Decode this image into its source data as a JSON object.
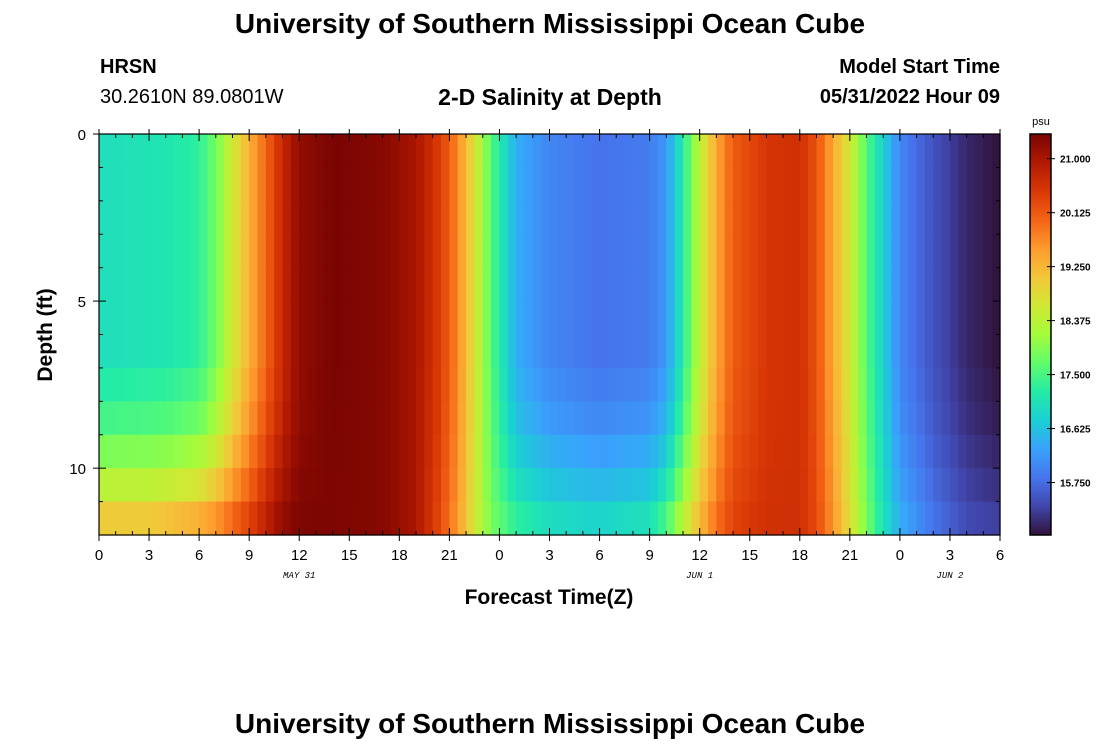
{
  "header": {
    "title": "University of Southern Mississippi Ocean Cube",
    "station_name": "HRSN",
    "station_coords": "30.2610N  89.0801W",
    "chart_title": "2-D Salinity at Depth",
    "model_label": "Model Start Time",
    "model_start": "05/31/2022 Hour 09"
  },
  "footer": {
    "title": "University of Southern Mississippi Ocean Cube"
  },
  "chart_data": {
    "type": "heatmap",
    "title": "2-D Salinity at Depth",
    "xlabel": "Forecast Time(Z)",
    "ylabel": "Depth (ft)",
    "colorbar_unit": "psu",
    "x_start_hour": 0,
    "x_end_hour": 54,
    "xlim": [
      0,
      54
    ],
    "ylim": [
      0,
      12
    ],
    "x_tick_hours": [
      0,
      3,
      6,
      9,
      12,
      15,
      18,
      21,
      24,
      27,
      30,
      33,
      36,
      39,
      42,
      45,
      48,
      51,
      54
    ],
    "x_tick_labels": [
      "0",
      "3",
      "6",
      "9",
      "12",
      "15",
      "18",
      "21",
      "0",
      "3",
      "6",
      "9",
      "12",
      "15",
      "18",
      "21",
      "0",
      "3",
      "6"
    ],
    "y_ticks": [
      0,
      5,
      10
    ],
    "y_tick_labels": [
      "0",
      "5",
      "10"
    ],
    "date_labels": [
      {
        "text": "MAY 31",
        "hour": 12
      },
      {
        "text": "JUN 1",
        "hour": 36
      },
      {
        "text": "JUN 2",
        "hour": 51
      }
    ],
    "colorbar": {
      "min": 14.9,
      "max": 21.4,
      "ticks": [
        15.75,
        16.625,
        17.5,
        18.375,
        19.25,
        20.125,
        21.0
      ],
      "tick_labels": [
        "15.750",
        "16.625",
        "17.500",
        "18.375",
        "19.250",
        "20.125",
        "21.000"
      ]
    },
    "surface_salinity_by_hour": [
      [
        0,
        17.0
      ],
      [
        4,
        17.1
      ],
      [
        6,
        17.3
      ],
      [
        7,
        17.8
      ],
      [
        8,
        18.6
      ],
      [
        9,
        19.3
      ],
      [
        10,
        20.0
      ],
      [
        11,
        20.7
      ],
      [
        12,
        21.2
      ],
      [
        14,
        21.4
      ],
      [
        17,
        21.3
      ],
      [
        19,
        21.0
      ],
      [
        20.5,
        20.4
      ],
      [
        21.5,
        19.7
      ],
      [
        22.5,
        18.7
      ],
      [
        23.5,
        17.6
      ],
      [
        25,
        16.4
      ],
      [
        27,
        16.0
      ],
      [
        30,
        15.8
      ],
      [
        33,
        15.9
      ],
      [
        34,
        16.2
      ],
      [
        35,
        17.2
      ],
      [
        36,
        18.4
      ],
      [
        37,
        19.4
      ],
      [
        38,
        20.1
      ],
      [
        40,
        20.5
      ],
      [
        42,
        20.6
      ],
      [
        43,
        20.2
      ],
      [
        44,
        19.4
      ],
      [
        45,
        18.6
      ],
      [
        46,
        17.6
      ],
      [
        47,
        16.8
      ],
      [
        48,
        16.0
      ],
      [
        50,
        15.5
      ],
      [
        52,
        15.1
      ],
      [
        54,
        14.9
      ]
    ],
    "bottom_salinity_by_hour": [
      [
        0,
        19.5
      ],
      [
        3,
        19.5
      ],
      [
        6,
        19.8
      ],
      [
        7,
        20.0
      ],
      [
        8,
        20.3
      ],
      [
        9,
        20.6
      ],
      [
        10,
        21.0
      ],
      [
        11,
        21.3
      ],
      [
        12,
        21.4
      ],
      [
        17,
        21.3
      ],
      [
        19,
        21.0
      ],
      [
        20.5,
        20.2
      ],
      [
        21.5,
        19.5
      ],
      [
        22.5,
        18.6
      ],
      [
        23.5,
        17.9
      ],
      [
        25,
        17.5
      ],
      [
        27,
        17.2
      ],
      [
        30,
        17.1
      ],
      [
        33,
        17.3
      ],
      [
        34,
        17.8
      ],
      [
        35,
        18.6
      ],
      [
        36,
        19.4
      ],
      [
        37,
        20.0
      ],
      [
        38,
        20.4
      ],
      [
        40,
        20.6
      ],
      [
        42,
        20.6
      ],
      [
        43,
        20.3
      ],
      [
        44,
        19.6
      ],
      [
        45,
        18.8
      ],
      [
        46,
        17.9
      ],
      [
        47,
        17.1
      ],
      [
        48,
        16.5
      ],
      [
        50,
        15.9
      ],
      [
        52,
        15.5
      ],
      [
        54,
        15.4
      ]
    ],
    "depth_profile": [
      [
        0,
        0.0
      ],
      [
        7,
        0.0
      ],
      [
        7.5,
        0.08
      ],
      [
        8.5,
        0.18
      ],
      [
        9.5,
        0.35
      ],
      [
        10.5,
        0.55
      ],
      [
        11.5,
        0.8
      ],
      [
        12,
        1.0
      ]
    ],
    "colormap": [
      "#30123b",
      "#4145ab",
      "#4675ed",
      "#39a2fc",
      "#1bcfd4",
      "#24eca6",
      "#61fc6c",
      "#a4fc3b",
      "#d1e834",
      "#f3c63a",
      "#fe9b2d",
      "#f36315",
      "#d93806",
      "#b11901",
      "#7a0402"
    ]
  }
}
